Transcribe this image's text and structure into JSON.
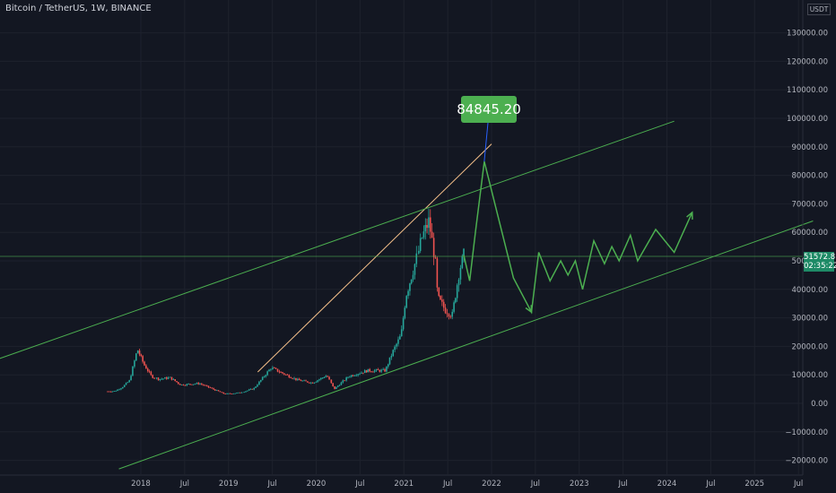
{
  "header": {
    "title": "Bitcoin / TetherUS, 1W, BINANCE"
  },
  "price_axis": {
    "currency": "USDT",
    "ticks": [
      "130000.00",
      "120000.00",
      "110000.00",
      "100000.00",
      "90000.00",
      "80000.00",
      "70000.00",
      "60000.00",
      "50000.00",
      "40000.00",
      "30000.00",
      "20000.00",
      "10000.00",
      "0.00",
      "−10000.00",
      "−20000.00"
    ]
  },
  "time_axis": {
    "ticks": [
      "2018",
      "Jul",
      "2019",
      "Jul",
      "2020",
      "Jul",
      "2021",
      "Jul",
      "2022",
      "Jul",
      "2023",
      "Jul",
      "2024",
      "Jul",
      "2025",
      "Jul"
    ]
  },
  "last_price": {
    "value": "51572.81",
    "countdown": "02:35:22"
  },
  "callout": {
    "label": "84845.20"
  },
  "colors": {
    "background": "#131722",
    "up": "#26a69a",
    "down": "#ef5350",
    "projection": "#4caf50",
    "trendline": "#f5c08a",
    "channel": "#4caf50"
  },
  "chart_data": {
    "type": "candlestick",
    "title": "Bitcoin / TetherUS, 1W, BINANCE",
    "ylim": [
      -22000,
      135000
    ],
    "xlim": [
      "2017-08",
      "2025-12"
    ],
    "weekly_close_approx": [
      [
        "2017-08-15",
        4200
      ],
      [
        "2017-09-15",
        4300
      ],
      [
        "2017-10-15",
        5700
      ],
      [
        "2017-11-15",
        8000
      ],
      [
        "2017-12-17",
        19000
      ],
      [
        "2018-01-15",
        13500
      ],
      [
        "2018-02-15",
        9500
      ],
      [
        "2018-03-15",
        8500
      ],
      [
        "2018-05-01",
        9000
      ],
      [
        "2018-06-15",
        6500
      ],
      [
        "2018-09-01",
        7000
      ],
      [
        "2018-11-20",
        4200
      ],
      [
        "2018-12-15",
        3300
      ],
      [
        "2019-02-15",
        3700
      ],
      [
        "2019-04-15",
        5200
      ],
      [
        "2019-06-26",
        12500
      ],
      [
        "2019-08-15",
        10500
      ],
      [
        "2019-10-15",
        8200
      ],
      [
        "2019-12-15",
        7200
      ],
      [
        "2020-02-15",
        9800
      ],
      [
        "2020-03-15",
        5000
      ],
      [
        "2020-05-15",
        9500
      ],
      [
        "2020-08-01",
        11500
      ],
      [
        "2020-10-15",
        11500
      ],
      [
        "2020-11-15",
        18000
      ],
      [
        "2020-12-20",
        24000
      ],
      [
        "2021-01-10",
        38000
      ],
      [
        "2021-02-20",
        50000
      ],
      [
        "2021-03-15",
        58000
      ],
      [
        "2021-04-14",
        64000
      ],
      [
        "2021-05-10",
        50000
      ],
      [
        "2021-05-20",
        37000
      ],
      [
        "2021-06-20",
        33000
      ],
      [
        "2021-07-20",
        31000
      ],
      [
        "2021-08-20",
        47000
      ],
      [
        "2021-09-07",
        52000
      ]
    ],
    "annotations": [
      {
        "type": "projection_path",
        "points": [
          [
            "2021-09-07",
            52000
          ],
          [
            "2021-10-01",
            43000
          ],
          [
            "2021-10-25",
            60000
          ],
          [
            "2021-12-01",
            84845.2
          ],
          [
            "2022-04-01",
            44000
          ],
          [
            "2022-06-15",
            32000
          ],
          [
            "2022-07-15",
            53000
          ],
          [
            "2022-09-01",
            43000
          ],
          [
            "2022-10-15",
            50000
          ],
          [
            "2022-11-15",
            45000
          ],
          [
            "2022-12-15",
            50000
          ],
          [
            "2023-01-15",
            40000
          ],
          [
            "2023-03-01",
            57000
          ],
          [
            "2023-04-15",
            49000
          ],
          [
            "2023-05-15",
            55000
          ],
          [
            "2023-06-15",
            50000
          ],
          [
            "2023-08-01",
            59000
          ],
          [
            "2023-09-01",
            50000
          ],
          [
            "2023-11-15",
            61000
          ],
          [
            "2024-02-01",
            53000
          ],
          [
            "2024-04-15",
            67000
          ]
        ]
      },
      {
        "type": "label",
        "text": "84845.20",
        "value": 84845.2
      },
      {
        "type": "trendline",
        "points": [
          [
            "2019-05-01",
            11000
          ],
          [
            "2022-01-01",
            91000
          ]
        ]
      },
      {
        "type": "channel_upper",
        "points": [
          [
            "2015-08-01",
            7000
          ],
          [
            "2024-02-01",
            99000
          ]
        ]
      },
      {
        "type": "channel_lower",
        "points": [
          [
            "2017-10-01",
            -23000
          ],
          [
            "2025-09-01",
            64000
          ]
        ]
      },
      {
        "type": "horizontal_line",
        "value": 51572.81
      }
    ]
  }
}
